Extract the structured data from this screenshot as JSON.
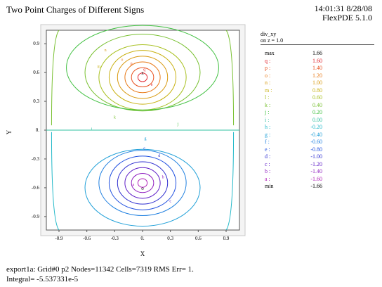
{
  "title": "Two Point Charges of Different Signs",
  "timestamp": {
    "time_date": "14:01:31 8/28/08",
    "version": "FlexPDE 5.1.0"
  },
  "plot": {
    "x_axis_label": "X",
    "y_axis_label": "Y",
    "x_ticks": [
      "-0.9",
      "-0.6",
      "-0.3",
      "0.",
      "0.3",
      "0.6",
      "0.9"
    ],
    "y_ticks": [
      "0.9",
      "0.6",
      "0.3",
      "0.",
      "-0.3",
      "-0.6",
      "-0.9"
    ],
    "upper_charge_marker": "x",
    "lower_charge_marker": "o"
  },
  "legend": {
    "variable": "div_xy",
    "surface": "on z = 1.0",
    "max_label": "max",
    "max_value": "1.66",
    "min_label": "min",
    "min_value": "-1.66",
    "levels": [
      {
        "code": "q :",
        "value": "1.60",
        "color": "#e0202a"
      },
      {
        "code": "p :",
        "value": "1.40",
        "color": "#e8501e"
      },
      {
        "code": "o :",
        "value": "1.20",
        "color": "#e87a18"
      },
      {
        "code": "n :",
        "value": "1.00",
        "color": "#d89a10"
      },
      {
        "code": "m :",
        "value": "0.80",
        "color": "#c8b010"
      },
      {
        "code": "l :",
        "value": "0.60",
        "color": "#a8c020"
      },
      {
        "code": "k :",
        "value": "0.40",
        "color": "#78c030"
      },
      {
        "code": "j :",
        "value": "0.20",
        "color": "#40c040"
      },
      {
        "code": "i :",
        "value": "0.00",
        "color": "#30c0a0"
      },
      {
        "code": "h :",
        "value": "-0.20",
        "color": "#20b8c8"
      },
      {
        "code": "g :",
        "value": "-0.40",
        "color": "#20a0d8"
      },
      {
        "code": "f :",
        "value": "-0.60",
        "color": "#2080e0"
      },
      {
        "code": "e :",
        "value": "-0.80",
        "color": "#2050e0"
      },
      {
        "code": "d :",
        "value": "-1.00",
        "color": "#3030d0"
      },
      {
        "code": "c :",
        "value": "-1.20",
        "color": "#6020c8"
      },
      {
        "code": "b :",
        "value": "-1.40",
        "color": "#9020c0"
      },
      {
        "code": "a :",
        "value": "-1.60",
        "color": "#b020b8"
      }
    ]
  },
  "footer": {
    "line1": "export1a:  Grid#0  p2  Nodes=11342 Cells=7319 RMS Err= 1.",
    "line2": "Integral= -5.537331e-5"
  }
}
